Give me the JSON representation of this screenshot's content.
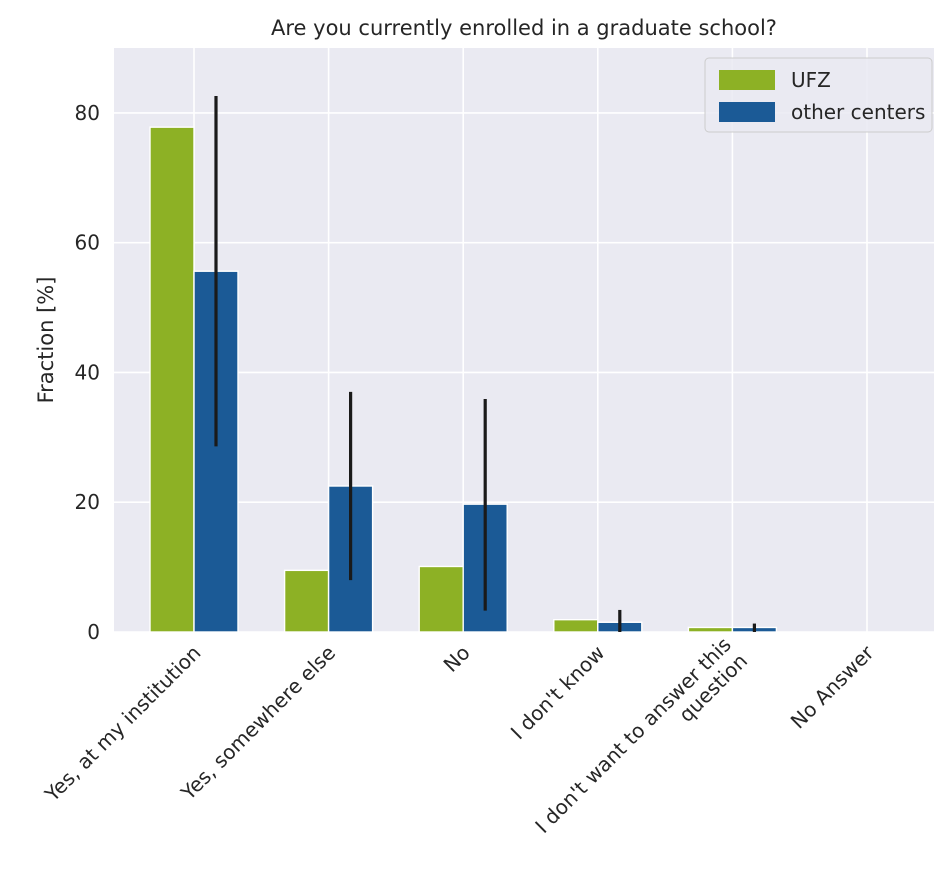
{
  "chart_data": {
    "type": "bar",
    "title": "Are you currently enrolled in a graduate school?",
    "xlabel": "",
    "ylabel": "Fraction [%]",
    "ylim": [
      0,
      90
    ],
    "yticks": [
      0,
      20,
      40,
      60,
      80
    ],
    "grid": true,
    "legend_position": "top-right",
    "categories": [
      "Yes, at my institution",
      "Yes, somewhere else",
      "No",
      "I don't know",
      "I don't want to answer this question",
      "No Answer"
    ],
    "series": [
      {
        "name": "UFZ",
        "color": "#8db125",
        "values": [
          77.8,
          9.5,
          10.1,
          1.9,
          0.7,
          0.0
        ]
      },
      {
        "name": "other centers",
        "color": "#1b5a96",
        "values": [
          55.6,
          22.5,
          19.7,
          1.5,
          0.7,
          0.0
        ],
        "error_low": [
          28.6,
          8.0,
          3.3,
          0.0,
          0.0,
          0.0
        ],
        "error_high": [
          82.6,
          37.0,
          35.9,
          3.4,
          1.3,
          0.0
        ]
      }
    ]
  }
}
